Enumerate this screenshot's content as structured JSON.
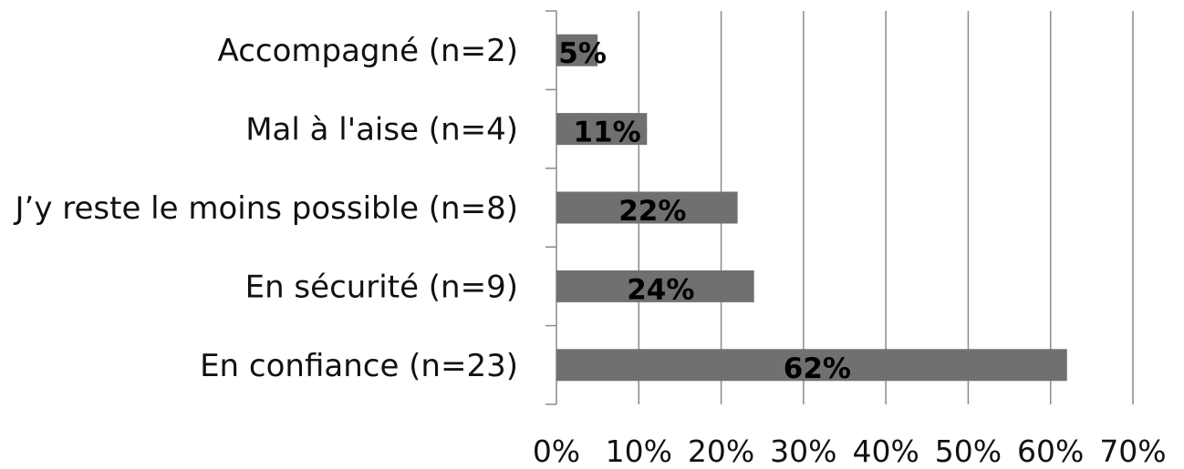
{
  "chart_data": {
    "type": "bar",
    "orientation": "horizontal",
    "categories": [
      "Accompagné (n=2)",
      "Mal à l'aise (n=4)",
      "J’y reste le moins possible (n=8)",
      "En sécurité (n=9)",
      "En confiance (n=23)"
    ],
    "values": [
      5,
      11,
      22,
      24,
      62
    ],
    "data_labels": [
      "5%",
      "11%",
      "22%",
      "24%",
      "62%"
    ],
    "xlim": [
      0,
      70
    ],
    "xticks": [
      0,
      10,
      20,
      30,
      40,
      50,
      60,
      70
    ],
    "xtick_labels": [
      "0%",
      "10%",
      "20%",
      "30%",
      "40%",
      "50%",
      "60%",
      "70%"
    ],
    "grid": "vertical",
    "bar_color": "#707070",
    "title": "",
    "xlabel": "",
    "ylabel": ""
  }
}
